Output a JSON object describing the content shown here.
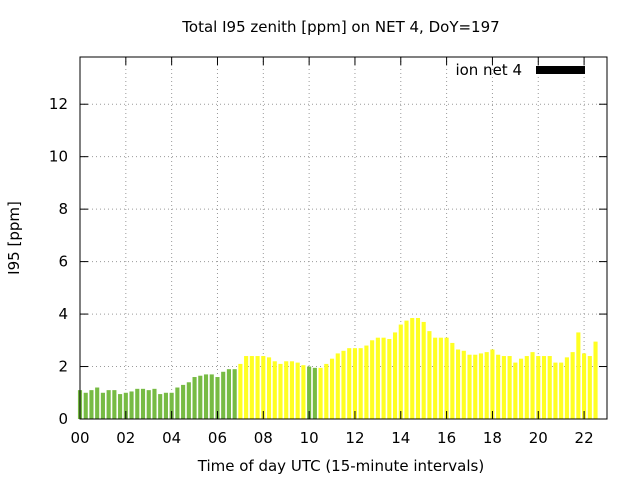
{
  "chart_data": {
    "type": "bar",
    "title": "Total I95 zenith [ppm] on NET 4, DoY=197",
    "xlabel": "Time of day UTC (15-minute intervals)",
    "ylabel": "I95 [ppm]",
    "xlim": [
      0,
      23
    ],
    "ylim": [
      0,
      13.8
    ],
    "x_ticks": [
      0,
      2,
      4,
      6,
      8,
      10,
      12,
      14,
      16,
      18,
      20,
      22
    ],
    "x_tick_labels": [
      "00",
      "02",
      "04",
      "06",
      "08",
      "10",
      "12",
      "14",
      "16",
      "18",
      "20",
      "22"
    ],
    "y_ticks": [
      0,
      2,
      4,
      6,
      8,
      10,
      12
    ],
    "y_tick_labels": [
      "0",
      "2",
      "4",
      "6",
      "8",
      "10",
      "12"
    ],
    "grid": true,
    "legend": {
      "label": "ion net 4",
      "color": "#000000",
      "placement": "top-right"
    },
    "colors": {
      "green": "#77bb44",
      "yellow": "#ffff22"
    },
    "bar_interval_hours": 0.25,
    "series": [
      {
        "values": [
          1.1,
          1.0,
          1.1,
          1.2,
          1.0,
          1.1,
          1.1,
          0.95,
          1.0,
          1.05,
          1.15,
          1.15,
          1.1,
          1.15,
          0.95,
          1.0,
          1.0,
          1.2,
          1.3,
          1.4,
          1.6,
          1.65,
          1.7,
          1.7,
          1.6,
          1.8,
          1.9,
          1.9,
          2.1,
          2.4,
          2.4,
          2.4,
          2.4,
          2.35,
          2.2,
          2.1,
          2.2,
          2.2,
          2.15,
          2.05,
          2.0,
          1.95,
          1.95,
          2.1,
          2.3,
          2.5,
          2.6,
          2.7,
          2.7,
          2.7,
          2.8,
          3.0,
          3.1,
          3.1,
          3.05,
          3.3,
          3.6,
          3.75,
          3.85,
          3.85,
          3.7,
          3.35,
          3.1,
          3.1,
          3.1,
          2.9,
          2.65,
          2.6,
          2.45,
          2.45,
          2.5,
          2.55,
          2.65,
          2.45,
          2.4,
          2.4,
          2.15,
          2.3,
          2.4,
          2.55,
          2.4,
          2.4,
          2.4,
          2.15,
          2.15,
          2.35,
          2.55,
          3.3,
          2.5,
          2.4,
          2.95
        ],
        "colors": [
          "green",
          "green",
          "green",
          "green",
          "green",
          "green",
          "green",
          "green",
          "green",
          "green",
          "green",
          "green",
          "green",
          "green",
          "green",
          "green",
          "green",
          "green",
          "green",
          "green",
          "green",
          "green",
          "green",
          "green",
          "green",
          "green",
          "green",
          "green",
          "yellow",
          "yellow",
          "yellow",
          "yellow",
          "yellow",
          "yellow",
          "yellow",
          "yellow",
          "yellow",
          "yellow",
          "yellow",
          "yellow",
          "green",
          "green",
          "yellow",
          "yellow",
          "yellow",
          "yellow",
          "yellow",
          "yellow",
          "yellow",
          "yellow",
          "yellow",
          "yellow",
          "yellow",
          "yellow",
          "yellow",
          "yellow",
          "yellow",
          "yellow",
          "yellow",
          "yellow",
          "yellow",
          "yellow",
          "yellow",
          "yellow",
          "yellow",
          "yellow",
          "yellow",
          "yellow",
          "yellow",
          "yellow",
          "yellow",
          "yellow",
          "yellow",
          "yellow",
          "yellow",
          "yellow",
          "yellow",
          "yellow",
          "yellow",
          "yellow",
          "yellow",
          "yellow",
          "yellow",
          "yellow",
          "yellow",
          "yellow",
          "yellow",
          "yellow",
          "yellow",
          "yellow",
          "yellow"
        ]
      }
    ]
  }
}
